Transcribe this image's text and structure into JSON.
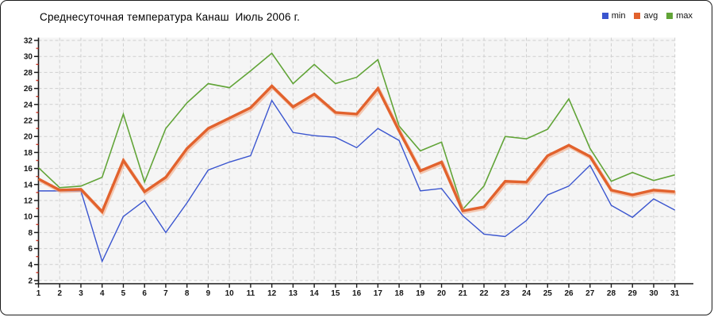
{
  "chart_data": {
    "type": "line",
    "title": "Среднесуточная температура Канаш  Июль 2006 г.",
    "xlabel": "",
    "ylabel": "",
    "x": [
      1,
      2,
      3,
      4,
      5,
      6,
      7,
      8,
      9,
      10,
      11,
      12,
      13,
      14,
      15,
      16,
      17,
      18,
      19,
      20,
      21,
      22,
      23,
      24,
      25,
      26,
      27,
      28,
      29,
      30,
      31
    ],
    "yticks": [
      2,
      4,
      6,
      8,
      10,
      12,
      14,
      16,
      18,
      20,
      22,
      24,
      26,
      28,
      30,
      32
    ],
    "ylim": [
      2,
      32
    ],
    "grid": "dashed",
    "legend_position": "top-right",
    "series": [
      {
        "name": "min",
        "color": "#3a55cf",
        "values": [
          13.2,
          13.2,
          13.2,
          4.4,
          10.0,
          12.0,
          8.0,
          11.7,
          15.8,
          16.8,
          17.6,
          24.5,
          20.5,
          20.1,
          19.9,
          18.6,
          21.0,
          19.5,
          13.2,
          13.5,
          10.1,
          7.8,
          7.5,
          9.5,
          12.7,
          13.8,
          16.4,
          11.4,
          9.9,
          12.2,
          10.8
        ]
      },
      {
        "name": "avg",
        "color": "#e2622d",
        "values": [
          14.7,
          13.3,
          13.4,
          10.6,
          17.0,
          13.1,
          14.9,
          18.5,
          21.0,
          22.3,
          23.6,
          26.3,
          23.7,
          25.3,
          23.0,
          22.8,
          26.0,
          20.7,
          15.7,
          16.8,
          10.7,
          11.2,
          14.4,
          14.3,
          17.6,
          18.9,
          17.5,
          13.3,
          12.7,
          13.3,
          13.1
        ]
      },
      {
        "name": "max",
        "color": "#61a437",
        "values": [
          16.1,
          13.6,
          13.8,
          14.9,
          22.8,
          14.3,
          21.0,
          24.2,
          26.6,
          26.1,
          28.2,
          30.4,
          26.6,
          29.0,
          26.6,
          27.4,
          29.6,
          21.3,
          18.2,
          19.3,
          10.9,
          13.8,
          20.0,
          19.7,
          20.9,
          24.7,
          18.5,
          14.4,
          15.5,
          14.5,
          15.2
        ]
      }
    ],
    "colors": {
      "plot_background": "#f5f5f5",
      "grid": "#cfcfcf",
      "axis": "#1a1a1a",
      "minor_tick": "#cc3322",
      "avg_halo": "#f2a983"
    }
  }
}
